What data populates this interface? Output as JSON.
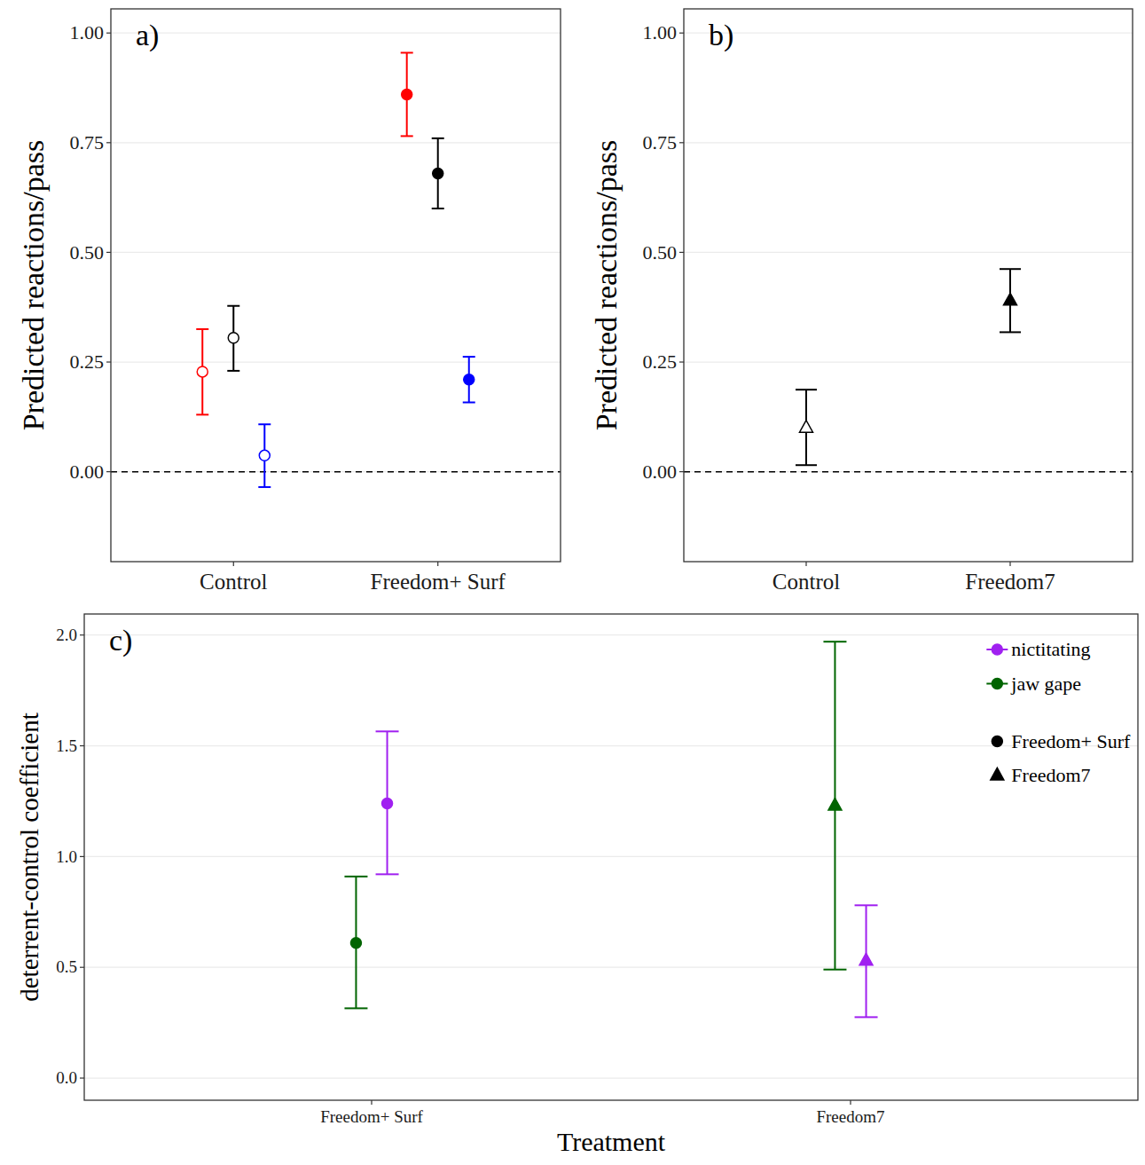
{
  "chart_data": [
    {
      "type": "point",
      "title": "a)",
      "y_label": "Predicted reactions/pass",
      "categories": [
        "Control",
        "Freedom+ Surf"
      ],
      "series": [
        {
          "color": "#ff0000",
          "values": [
            0.228,
            0.86
          ],
          "ci_lower": [
            0.13,
            0.765
          ],
          "ci_upper": [
            0.325,
            0.955
          ]
        },
        {
          "color": "#000000",
          "values": [
            0.305,
            0.68
          ],
          "ci_lower": [
            0.23,
            0.6
          ],
          "ci_upper": [
            0.378,
            0.76
          ]
        },
        {
          "color": "#0000ff",
          "values": [
            0.037,
            0.21
          ],
          "ci_lower": [
            -0.035,
            0.158
          ],
          "ci_upper": [
            0.108,
            0.262
          ]
        }
      ],
      "ylim": [
        -0.205,
        1.055
      ],
      "yticks": [
        {
          "value": 0,
          "label": "0.00"
        },
        0.25,
        {
          "value": 0.5,
          "label": "0.50"
        },
        0.75,
        {
          "value": 1,
          "label": "1.00"
        }
      ],
      "grid": "y",
      "marker": "circle"
    },
    {
      "type": "point",
      "title": "b)",
      "y_label": "Predicted reactions/pass",
      "categories": [
        "Control",
        "Freedom7"
      ],
      "series": [
        {
          "color": "#000000",
          "values": [
            0.1,
            0.39
          ],
          "ci_lower": [
            0.015,
            0.318
          ],
          "ci_upper": [
            0.187,
            0.462
          ]
        }
      ],
      "ylim": [
        -0.205,
        1.055
      ],
      "yticks": [
        {
          "value": 0,
          "label": "0.00"
        },
        0.25,
        {
          "value": 0.5,
          "label": "0.50"
        },
        0.75,
        {
          "value": 1,
          "label": "1.00"
        }
      ],
      "grid": "y",
      "marker": "triangle"
    },
    {
      "type": "point",
      "title": "c)",
      "x_label": "Treatment",
      "y_label": "deterrent-control coefficient",
      "categories": [
        "Freedom+ Surf",
        "Freedom7"
      ],
      "series": [
        {
          "name": "jaw gape",
          "color": "#006400",
          "values": [
            0.61,
            1.23
          ],
          "ci_lower": [
            0.315,
            0.49
          ],
          "ci_upper": [
            0.91,
            1.97
          ]
        },
        {
          "name": "nictitating",
          "color": "#a020f0",
          "values": [
            1.24,
            0.53
          ],
          "ci_lower": [
            0.92,
            0.275
          ],
          "ci_upper": [
            1.565,
            0.78
          ]
        }
      ],
      "ylim": [
        -0.1,
        2.095
      ],
      "yticks": [
        {
          "value": 0,
          "label": "0.0"
        },
        0.5,
        {
          "value": 1,
          "label": "1.0"
        },
        1.5,
        {
          "value": 2,
          "label": "2.0"
        }
      ],
      "grid": "y",
      "legend": "top-right"
    }
  ]
}
